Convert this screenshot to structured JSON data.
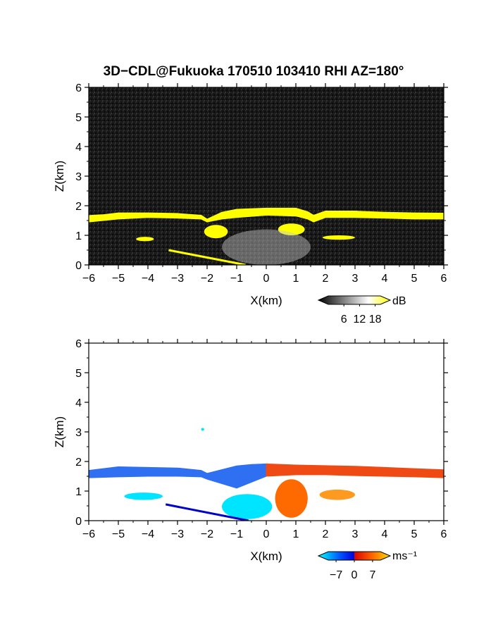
{
  "title": "3D−CDL@Fukuoka 170510 103410 RHI AZ=180°",
  "chart_data": [
    {
      "type": "heatmap",
      "name": "snr-panel",
      "xlabel": "X(km)",
      "ylabel": "Z(km)",
      "xlim": [
        -6,
        6
      ],
      "ylim": [
        0,
        6
      ],
      "xticks": [
        "−6",
        "−5",
        "−4",
        "−3",
        "−2",
        "−1",
        "0",
        "1",
        "2",
        "3",
        "4",
        "5",
        "6"
      ],
      "yticks": [
        "0",
        "1",
        "2",
        "3",
        "4",
        "5",
        "6"
      ],
      "background": "#141414",
      "colorbar": {
        "unit": "dB",
        "ticks": [
          "6",
          "12",
          "18"
        ],
        "range": [
          0,
          20
        ],
        "colors": [
          "#000000",
          "#ffffff",
          "#ffff00"
        ]
      },
      "features": [
        {
          "kind": "cloud-base layer",
          "color": "#ffff00",
          "x": [
            -6,
            -5.5,
            -5,
            -4,
            -3,
            -2.2,
            -2.0,
            -1.5,
            -1,
            0,
            1,
            1.4,
            1.6,
            2,
            3,
            4,
            5,
            6
          ],
          "z_top": [
            1.67,
            1.7,
            1.76,
            1.76,
            1.74,
            1.68,
            1.55,
            1.78,
            1.88,
            1.92,
            1.92,
            1.8,
            1.68,
            1.82,
            1.82,
            1.78,
            1.76,
            1.75
          ],
          "z_bottom": [
            1.45,
            1.5,
            1.55,
            1.6,
            1.58,
            1.55,
            1.45,
            1.55,
            1.6,
            1.68,
            1.65,
            1.55,
            1.45,
            1.6,
            1.6,
            1.58,
            1.55,
            1.55
          ]
        },
        {
          "kind": "echo patch",
          "color": "#ffff00",
          "x": [
            -4.4,
            -3.8
          ],
          "z": [
            0.8,
            0.95
          ]
        },
        {
          "kind": "echo patch",
          "color": "#ffff00",
          "x": [
            -2.1,
            -1.3
          ],
          "z": [
            0.9,
            1.35
          ]
        },
        {
          "kind": "echo patch",
          "color": "#ffff00",
          "x": [
            0.4,
            1.3
          ],
          "z": [
            1.0,
            1.4
          ]
        },
        {
          "kind": "echo patch",
          "color": "#ffff00",
          "x": [
            1.9,
            3.0
          ],
          "z": [
            0.85,
            1.0
          ]
        },
        {
          "kind": "ground echo",
          "color": "#ffff00",
          "x": [
            -3.3,
            -0.7
          ],
          "z": [
            0.5,
            0.0
          ]
        },
        {
          "kind": "weak echo column",
          "color": "#c8c8c8",
          "x": [
            -1.5,
            1.5
          ],
          "z": [
            0.0,
            1.2
          ]
        }
      ]
    },
    {
      "type": "heatmap",
      "name": "doppler-velocity-panel",
      "xlabel": "X(km)",
      "ylabel": "Z(km)",
      "xlim": [
        -6,
        6
      ],
      "ylim": [
        0,
        6
      ],
      "xticks": [
        "−6",
        "−5",
        "−4",
        "−3",
        "−2",
        "−1",
        "0",
        "1",
        "2",
        "3",
        "4",
        "5",
        "6"
      ],
      "yticks": [
        "0",
        "1",
        "2",
        "3",
        "4",
        "5",
        "6"
      ],
      "background": "#ffffff",
      "colorbar": {
        "unit": "ms⁻¹",
        "ticks": [
          "−7",
          "0",
          "7"
        ],
        "range": [
          -10,
          10
        ],
        "colors": [
          "#00ffff",
          "#0055ff",
          "#0000dd",
          "#dd0000",
          "#ff6600",
          "#ffdd00"
        ]
      },
      "features": [
        {
          "kind": "cloud-base layer",
          "sign": "negative (toward radar)",
          "color": "#2f6ff2",
          "x": [
            -6,
            -5,
            -4,
            -3,
            -2.2,
            -2,
            -1,
            -0.5,
            0
          ],
          "z_top": [
            1.7,
            1.82,
            1.8,
            1.78,
            1.7,
            1.6,
            1.85,
            1.9,
            1.92
          ],
          "z_bottom": [
            1.45,
            1.48,
            1.5,
            1.5,
            1.48,
            1.4,
            1.1,
            1.3,
            1.5
          ]
        },
        {
          "kind": "cloud-base layer",
          "sign": "positive (away from radar)",
          "color": "#f04a14",
          "x": [
            0,
            1,
            2,
            3,
            4,
            5,
            6
          ],
          "z_top": [
            1.92,
            1.88,
            1.86,
            1.84,
            1.8,
            1.76,
            1.72
          ],
          "z_bottom": [
            1.5,
            1.55,
            1.55,
            1.52,
            1.5,
            1.48,
            1.45
          ]
        },
        {
          "kind": "echo patch",
          "color": "#00e5ff",
          "x": [
            -4.8,
            -3.5
          ],
          "z": [
            0.7,
            0.95
          ]
        },
        {
          "kind": "echo patch",
          "color": "#00e5ff",
          "x": [
            -1.5,
            0.2
          ],
          "z": [
            0.05,
            0.9
          ]
        },
        {
          "kind": "echo patch",
          "color": "#ff6a00",
          "x": [
            0.3,
            1.4
          ],
          "z": [
            0.1,
            1.4
          ]
        },
        {
          "kind": "echo patch",
          "color": "#ff9a20",
          "x": [
            1.8,
            3.0
          ],
          "z": [
            0.7,
            1.05
          ]
        },
        {
          "kind": "ground echo",
          "color": "#0000cc",
          "x": [
            -3.4,
            -0.6
          ],
          "z": [
            0.55,
            0.0
          ]
        },
        {
          "kind": "isolated pixel",
          "color": "#00e5ff",
          "x": [
            -2.2,
            -2.1
          ],
          "z": [
            3.05,
            3.12
          ]
        }
      ]
    }
  ]
}
